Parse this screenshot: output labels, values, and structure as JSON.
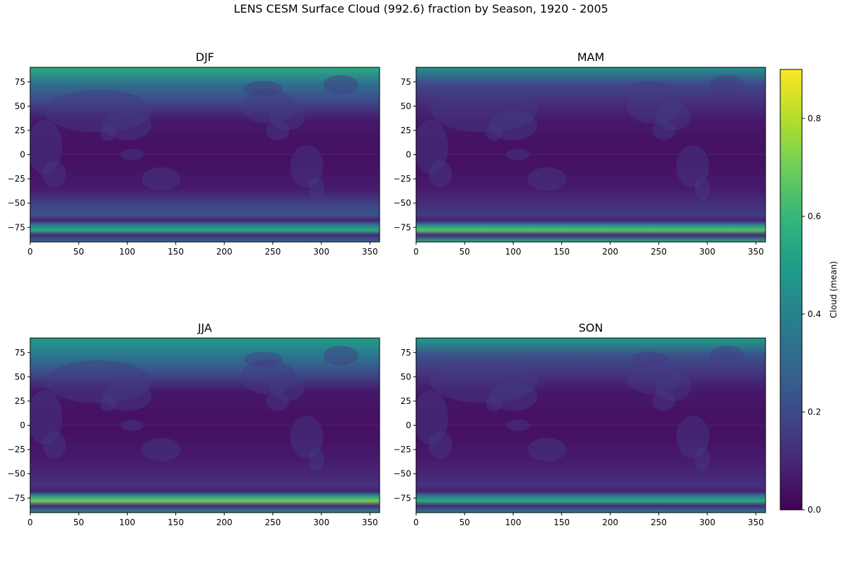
{
  "title": "LENS CESM Surface Cloud (992.6) fraction by Season, 1920 - 2005",
  "chart_data": [
    {
      "type": "heatmap",
      "title": "DJF",
      "x_ticks": [
        0,
        50,
        100,
        150,
        200,
        250,
        300,
        350
      ],
      "y_ticks": [
        75,
        50,
        25,
        0,
        -25,
        -50,
        -75
      ],
      "xlim": [
        0,
        360
      ],
      "ylim": [
        -90,
        90
      ],
      "zonal_profile": {
        "north_pole": 0.55,
        "mid_north": 0.2,
        "tropics": 0.04,
        "mid_south": 0.18,
        "antarctic_band": 0.55,
        "south_pole": 0.3
      }
    },
    {
      "type": "heatmap",
      "title": "MAM",
      "x_ticks": [
        0,
        50,
        100,
        150,
        200,
        250,
        300,
        350
      ],
      "y_ticks": [
        75,
        50,
        25,
        0,
        -25,
        -50,
        -75
      ],
      "xlim": [
        0,
        360
      ],
      "ylim": [
        -90,
        90
      ],
      "zonal_profile": {
        "north_pole": 0.45,
        "mid_north": 0.12,
        "tropics": 0.04,
        "mid_south": 0.12,
        "antarctic_band": 0.65,
        "south_pole": 0.55
      }
    },
    {
      "type": "heatmap",
      "title": "JJA",
      "x_ticks": [
        0,
        50,
        100,
        150,
        200,
        250,
        300,
        350
      ],
      "y_ticks": [
        75,
        50,
        25,
        0,
        -25,
        -50,
        -75
      ],
      "xlim": [
        0,
        360
      ],
      "ylim": [
        -90,
        90
      ],
      "zonal_profile": {
        "north_pole": 0.5,
        "mid_north": 0.22,
        "tropics": 0.04,
        "mid_south": 0.1,
        "antarctic_band": 0.7,
        "south_pole": 0.45
      }
    },
    {
      "type": "heatmap",
      "title": "SON",
      "x_ticks": [
        0,
        50,
        100,
        150,
        200,
        250,
        300,
        350
      ],
      "y_ticks": [
        75,
        50,
        25,
        0,
        -25,
        -50,
        -75
      ],
      "xlim": [
        0,
        360
      ],
      "ylim": [
        -90,
        90
      ],
      "zonal_profile": {
        "north_pole": 0.5,
        "mid_north": 0.14,
        "tropics": 0.04,
        "mid_south": 0.1,
        "antarctic_band": 0.55,
        "south_pole": 0.4
      }
    }
  ],
  "colorbar": {
    "label": "Cloud (mean)",
    "range": [
      0.0,
      0.9
    ],
    "ticks": [
      0.0,
      0.2,
      0.4,
      0.6,
      0.8
    ],
    "tick_labels": [
      "0.0",
      "0.2",
      "0.4",
      "0.6",
      "0.8"
    ],
    "colormap": "viridis",
    "colors": [
      "#440154",
      "#482878",
      "#3e4a89",
      "#31688e",
      "#26828e",
      "#1f9e89",
      "#35b779",
      "#6ece58",
      "#b5de2b",
      "#fde725"
    ]
  }
}
